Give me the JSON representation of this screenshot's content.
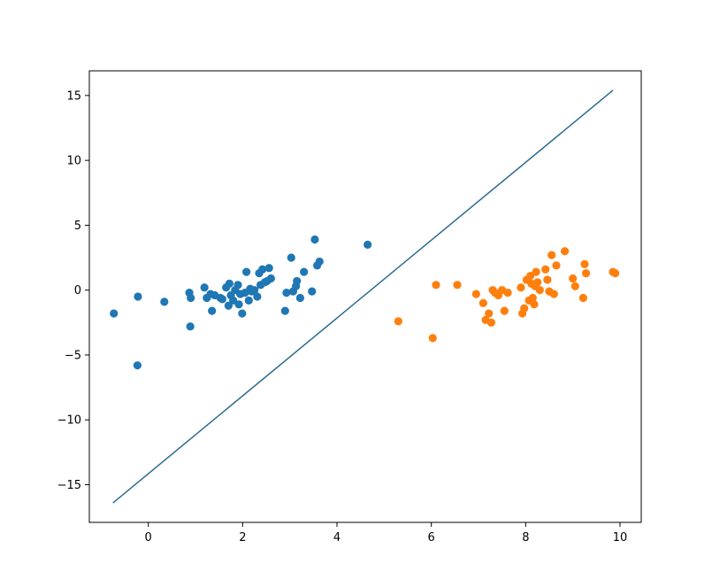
{
  "chart_data": {
    "type": "scatter",
    "title": "",
    "xlabel": "",
    "ylabel": "",
    "xlim": [
      -1.25,
      10.45
    ],
    "ylim": [
      -17.9,
      16.9
    ],
    "xticks": [
      0,
      2,
      4,
      6,
      8,
      10
    ],
    "yticks": [
      -15,
      -10,
      -5,
      0,
      5,
      10,
      15
    ],
    "xtick_labels": [
      "0",
      "2",
      "4",
      "6",
      "8",
      "10"
    ],
    "ytick_labels": [
      "−15",
      "−10",
      "−5",
      "0",
      "5",
      "10",
      "15"
    ],
    "grid": false,
    "series": [
      {
        "color": "#1f77b4",
        "points": [
          [
            -0.73,
            -1.8
          ],
          [
            -0.22,
            -0.5
          ],
          [
            -0.23,
            -5.8
          ],
          [
            0.34,
            -0.9
          ],
          [
            0.87,
            -0.2
          ],
          [
            0.9,
            -0.6
          ],
          [
            0.89,
            -2.8
          ],
          [
            1.19,
            0.2
          ],
          [
            1.24,
            -0.6
          ],
          [
            1.32,
            -0.3
          ],
          [
            1.35,
            -1.6
          ],
          [
            1.41,
            -0.4
          ],
          [
            1.53,
            -0.6
          ],
          [
            1.57,
            -0.7
          ],
          [
            1.65,
            0.2
          ],
          [
            1.7,
            -1.2
          ],
          [
            1.72,
            0.5
          ],
          [
            1.75,
            -0.4
          ],
          [
            1.8,
            -0.8
          ],
          [
            1.84,
            0.0
          ],
          [
            1.9,
            0.4
          ],
          [
            1.92,
            -1.1
          ],
          [
            1.95,
            -0.3
          ],
          [
            1.99,
            -1.8
          ],
          [
            2.05,
            -0.2
          ],
          [
            2.08,
            1.4
          ],
          [
            2.13,
            -0.8
          ],
          [
            2.16,
            0.1
          ],
          [
            2.19,
            -0.1
          ],
          [
            2.25,
            0.0
          ],
          [
            2.31,
            -0.5
          ],
          [
            2.35,
            1.3
          ],
          [
            2.38,
            0.4
          ],
          [
            2.42,
            1.6
          ],
          [
            2.47,
            0.6
          ],
          [
            2.52,
            0.7
          ],
          [
            2.56,
            1.7
          ],
          [
            2.6,
            0.9
          ],
          [
            2.9,
            -1.6
          ],
          [
            2.93,
            -0.2
          ],
          [
            3.03,
            2.5
          ],
          [
            3.07,
            -0.1
          ],
          [
            3.13,
            0.3
          ],
          [
            3.15,
            0.7
          ],
          [
            3.22,
            -0.6
          ],
          [
            3.3,
            1.4
          ],
          [
            3.47,
            -0.1
          ],
          [
            3.53,
            3.9
          ],
          [
            3.58,
            1.9
          ],
          [
            3.63,
            2.2
          ],
          [
            4.65,
            3.5
          ]
        ]
      },
      {
        "color": "#ff7f0e",
        "points": [
          [
            5.3,
            -2.4
          ],
          [
            6.03,
            -3.7
          ],
          [
            6.1,
            0.4
          ],
          [
            6.55,
            0.4
          ],
          [
            6.95,
            -0.3
          ],
          [
            7.1,
            -1.0
          ],
          [
            7.15,
            -2.3
          ],
          [
            7.22,
            -1.8
          ],
          [
            7.27,
            -2.5
          ],
          [
            7.3,
            0.0
          ],
          [
            7.35,
            -0.2
          ],
          [
            7.42,
            -0.4
          ],
          [
            7.5,
            0.0
          ],
          [
            7.55,
            -1.6
          ],
          [
            7.62,
            -0.2
          ],
          [
            7.9,
            0.2
          ],
          [
            7.93,
            -1.8
          ],
          [
            7.97,
            -1.4
          ],
          [
            8.02,
            0.8
          ],
          [
            8.07,
            -0.8
          ],
          [
            8.1,
            1.1
          ],
          [
            8.12,
            0.5
          ],
          [
            8.15,
            -0.6
          ],
          [
            8.18,
            -1.1
          ],
          [
            8.2,
            0.3
          ],
          [
            8.22,
            1.4
          ],
          [
            8.25,
            0.6
          ],
          [
            8.3,
            0.0
          ],
          [
            8.42,
            1.6
          ],
          [
            8.46,
            0.8
          ],
          [
            8.5,
            -0.1
          ],
          [
            8.55,
            2.7
          ],
          [
            8.6,
            -0.3
          ],
          [
            8.65,
            1.9
          ],
          [
            8.83,
            3.0
          ],
          [
            9.0,
            0.9
          ],
          [
            9.05,
            0.3
          ],
          [
            9.22,
            -0.6
          ],
          [
            9.25,
            2.0
          ],
          [
            9.28,
            1.3
          ],
          [
            9.85,
            1.4
          ],
          [
            9.9,
            1.3
          ]
        ]
      }
    ],
    "line": {
      "color": "#2c6b8f",
      "x": [
        -0.75,
        9.85
      ],
      "y": [
        -16.4,
        15.4
      ]
    }
  }
}
